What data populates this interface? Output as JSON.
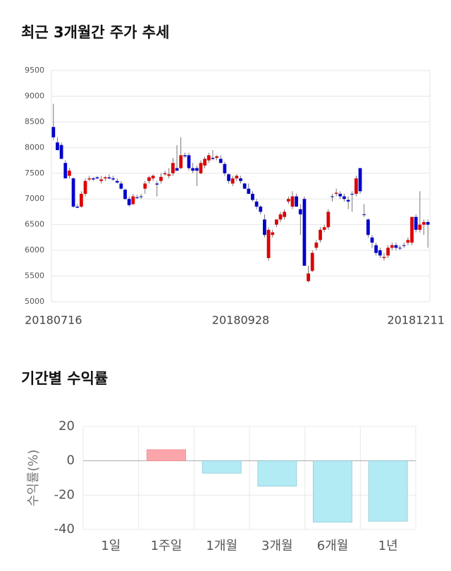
{
  "chart_data": [
    {
      "type": "candlestick",
      "title": "최근 3개월간 주가 추세",
      "categories": [
        "20180716",
        null,
        null,
        null,
        null,
        null,
        null,
        null,
        null,
        null,
        null,
        null,
        null,
        null,
        null,
        null,
        null,
        null,
        null,
        null,
        null,
        null,
        null,
        null,
        null,
        null,
        null,
        null,
        null,
        null,
        null,
        null,
        null,
        null,
        null,
        null,
        null,
        null,
        null,
        null,
        null,
        null,
        null,
        null,
        null,
        null,
        null,
        "20180928",
        null,
        null,
        null,
        null,
        null,
        null,
        null,
        null,
        null,
        null,
        null,
        null,
        null,
        null,
        null,
        null,
        null,
        null,
        null,
        null,
        null,
        null,
        null,
        null,
        null,
        null,
        null,
        null,
        null,
        null,
        null,
        null,
        null,
        null,
        null,
        null,
        null,
        null,
        null,
        null,
        null,
        null,
        null,
        "20181211",
        null,
        null,
        null
      ],
      "open": [
        8400,
        8100,
        8050,
        7700,
        7450,
        7400,
        6850,
        6850,
        7100,
        7380,
        7400,
        7420,
        7350,
        7400,
        7420,
        7400,
        7350,
        7300,
        7180,
        7000,
        6900,
        7030,
        7050,
        7200,
        7350,
        7400,
        7300,
        7350,
        7480,
        7450,
        7500,
        7600,
        7600,
        7850,
        7850,
        7600,
        7600,
        7500,
        7650,
        7750,
        7800,
        7800,
        7780,
        7680,
        7480,
        7300,
        7400,
        7400,
        7300,
        7200,
        7100,
        6950,
        6850,
        6600,
        5850,
        6300,
        6500,
        6600,
        6650,
        6950,
        6850,
        7050,
        6800,
        7000,
        5400,
        5600,
        6050,
        6200,
        6400,
        6450,
        7050,
        7100,
        7100,
        7050,
        6980,
        7100,
        7100,
        7600,
        6700,
        6600,
        6250,
        6100,
        6000,
        5850,
        5900,
        6050,
        6100,
        6050,
        6100,
        6150,
        6150,
        6650,
        6400,
        6500,
        6550
      ],
      "high": [
        8850,
        8200,
        8100,
        7750,
        7600,
        7420,
        6900,
        7150,
        7400,
        7450,
        7420,
        7450,
        7450,
        7450,
        7480,
        7450,
        7400,
        7350,
        7200,
        7050,
        7100,
        7080,
        7100,
        7350,
        7450,
        7480,
        7350,
        7500,
        7550,
        7600,
        7800,
        8050,
        8200,
        7900,
        7900,
        7700,
        7650,
        7750,
        7820,
        7900,
        7950,
        7850,
        7850,
        7720,
        7500,
        7450,
        7480,
        7450,
        7320,
        7300,
        7150,
        7000,
        6880,
        6700,
        6450,
        6400,
        6600,
        6750,
        6800,
        7050,
        7150,
        7100,
        6900,
        7050,
        5700,
        6000,
        6200,
        6450,
        6500,
        6800,
        7100,
        7200,
        7150,
        7100,
        7050,
        7150,
        7450,
        7600,
        6900,
        6620,
        6300,
        6150,
        6050,
        5950,
        6100,
        6150,
        6150,
        6100,
        6150,
        6250,
        6650,
        6700,
        7150,
        6600,
        6600
      ],
      "low": [
        8150,
        7950,
        7780,
        7400,
        7400,
        6830,
        6820,
        6830,
        7050,
        7350,
        7350,
        7380,
        7300,
        7350,
        7380,
        7350,
        7300,
        7180,
        6980,
        6850,
        6880,
        7000,
        7000,
        7100,
        7300,
        7350,
        7050,
        7300,
        7450,
        7400,
        7450,
        7550,
        7580,
        7800,
        7550,
        7500,
        7250,
        7480,
        7600,
        7700,
        7750,
        7750,
        7700,
        7450,
        7300,
        7250,
        7350,
        7300,
        7200,
        7100,
        6950,
        6800,
        6700,
        6250,
        5800,
        6250,
        6450,
        6550,
        6600,
        6900,
        6800,
        6850,
        6300,
        5700,
        5380,
        5580,
        6000,
        6150,
        6350,
        6400,
        6950,
        7050,
        7000,
        6950,
        6800,
        6750,
        7050,
        7100,
        6650,
        6250,
        6050,
        5900,
        5850,
        5800,
        5850,
        6000,
        6000,
        6000,
        6050,
        6100,
        6100,
        6350,
        6350,
        6300,
        6050
      ],
      "close": [
        8200,
        7950,
        7780,
        7400,
        7550,
        6850,
        6830,
        7100,
        7350,
        7400,
        7380,
        7400,
        7380,
        7420,
        7400,
        7380,
        7320,
        7200,
        7000,
        6880,
        7050,
        7030,
        7050,
        7300,
        7420,
        7450,
        7280,
        7430,
        7500,
        7480,
        7700,
        7550,
        7850,
        7830,
        7600,
        7550,
        7550,
        7700,
        7780,
        7850,
        7780,
        7830,
        7700,
        7500,
        7350,
        7400,
        7450,
        7350,
        7200,
        7100,
        6980,
        6850,
        6750,
        6300,
        6400,
        6350,
        6600,
        6700,
        6750,
        7000,
        7050,
        6850,
        6700,
        5700,
        5550,
        5950,
        6150,
        6400,
        6450,
        6750,
        7050,
        7120,
        7050,
        7000,
        6950,
        7100,
        7400,
        7150,
        6700,
        6300,
        6150,
        5950,
        5900,
        5870,
        6050,
        6100,
        6050,
        6050,
        6100,
        6200,
        6650,
        6400,
        6500,
        6550,
        6500
      ],
      "color_up": "#dd0000",
      "color_down": "#0000cc",
      "ylim": [
        5000,
        9500
      ],
      "yticks": [
        5000,
        5500,
        6000,
        6500,
        7000,
        7500,
        8000,
        8500,
        9000,
        9500
      ],
      "grid": true
    },
    {
      "type": "bar",
      "title": "기간별 수익률",
      "y_label": "수익률(%)",
      "categories": [
        "1일",
        "1주일",
        "1개월",
        "3개월",
        "6개월",
        "1년"
      ],
      "values": [
        0,
        6.5,
        -7.2,
        -14.8,
        -35.8,
        -35.2
      ],
      "color_positive": "#fba6ab",
      "color_negative": "#b3ebf5",
      "ylim": [
        -40,
        20
      ],
      "yticks": [
        -40,
        -20,
        0,
        20
      ],
      "grid": true
    }
  ]
}
